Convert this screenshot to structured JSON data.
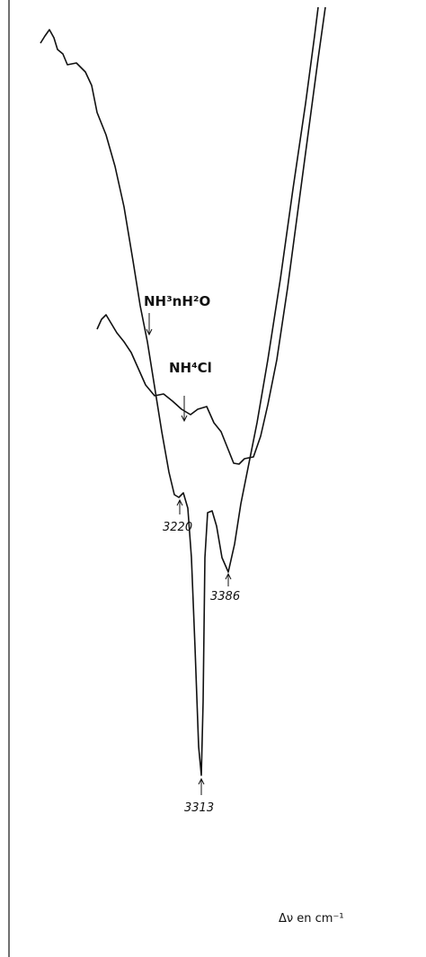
{
  "labels": {
    "curve_1": "NH³nH²O",
    "curve_2": "NH⁴Cl"
  },
  "peaks": [
    "3220",
    "3386",
    "3313"
  ],
  "axis_title": "Δν en cm⁻¹"
}
